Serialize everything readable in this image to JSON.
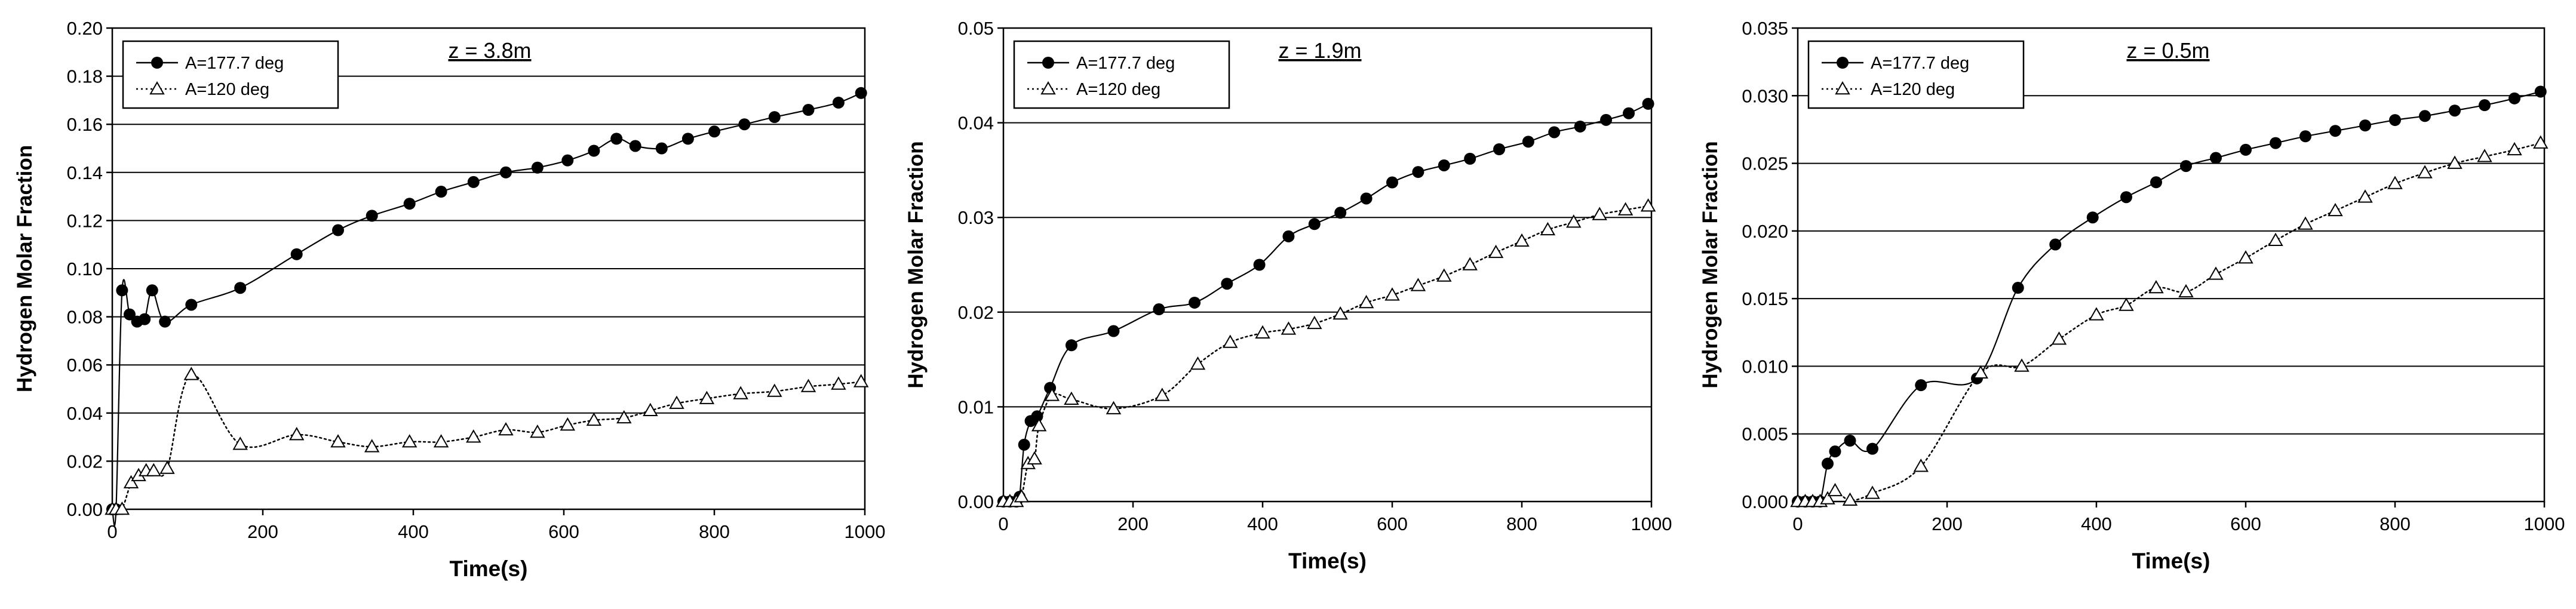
{
  "chart_data": [
    {
      "type": "line",
      "title": "z = 3.8m",
      "xlabel": "Time(s)",
      "ylabel": "Hydrogen Molar Fraction",
      "xlim": [
        0,
        1000
      ],
      "ylim": [
        0,
        0.2
      ],
      "xticks": [
        0,
        200,
        400,
        600,
        800,
        1000
      ],
      "xtick_labels": [
        "0",
        "200",
        "400",
        "600",
        "800",
        "1000"
      ],
      "yticks": [
        0,
        0.02,
        0.04,
        0.06,
        0.08,
        0.1,
        0.12,
        0.14,
        0.16,
        0.18,
        0.2
      ],
      "ytick_labels": [
        "0.00",
        "0.02",
        "0.04",
        "0.06",
        "0.08",
        "0.10",
        "0.12",
        "0.14",
        "0.16",
        "0.18",
        "0.20"
      ],
      "grid": "horizontal",
      "legend": "top-left",
      "series": [
        {
          "name": "A=177.7 deg",
          "marker": "circle",
          "line": "solid",
          "x": [
            0,
            5,
            13,
            23,
            33,
            43,
            53,
            70,
            105,
            170,
            245,
            300,
            345,
            395,
            437,
            480,
            523,
            565,
            605,
            640,
            670,
            695,
            730,
            765,
            800,
            840,
            880,
            925,
            965,
            995
          ],
          "y": [
            0,
            0,
            0.091,
            0.081,
            0.078,
            0.079,
            0.091,
            0.078,
            0.085,
            0.092,
            0.106,
            0.116,
            0.122,
            0.127,
            0.132,
            0.136,
            0.14,
            0.142,
            0.145,
            0.149,
            0.154,
            0.151,
            0.15,
            0.154,
            0.157,
            0.16,
            0.163,
            0.166,
            0.169,
            0.173
          ]
        },
        {
          "name": "A=120 deg",
          "marker": "triangle",
          "line": "dotted",
          "x": [
            0,
            5,
            13,
            25,
            35,
            45,
            55,
            73,
            105,
            170,
            245,
            300,
            345,
            395,
            437,
            480,
            523,
            565,
            605,
            640,
            680,
            715,
            750,
            790,
            835,
            880,
            925,
            965,
            995
          ],
          "y": [
            0,
            0,
            0,
            0.011,
            0.014,
            0.016,
            0.016,
            0.017,
            0.056,
            0.027,
            0.031,
            0.028,
            0.026,
            0.028,
            0.028,
            0.03,
            0.033,
            0.032,
            0.035,
            0.037,
            0.038,
            0.041,
            0.044,
            0.046,
            0.048,
            0.049,
            0.051,
            0.052,
            0.053
          ]
        }
      ]
    },
    {
      "type": "line",
      "title": "z = 1.9m",
      "xlabel": "Time(s)",
      "ylabel": "Hydrogen Molar Fraction",
      "xlim": [
        0,
        1000
      ],
      "ylim": [
        0,
        0.05
      ],
      "xticks": [
        0,
        200,
        400,
        600,
        800,
        1000
      ],
      "xtick_labels": [
        "0",
        "200",
        "400",
        "600",
        "800",
        "1000"
      ],
      "yticks": [
        0,
        0.01,
        0.02,
        0.03,
        0.04,
        0.05
      ],
      "ytick_labels": [
        "0.00",
        "0.01",
        "0.02",
        "0.03",
        "0.04",
        "0.05"
      ],
      "grid": "horizontal",
      "legend": "top-left",
      "series": [
        {
          "name": "A=177.7 deg",
          "marker": "circle",
          "line": "solid",
          "x": [
            0,
            10,
            20,
            25,
            32,
            42,
            52,
            72,
            105,
            170,
            240,
            295,
            345,
            395,
            440,
            480,
            520,
            560,
            600,
            640,
            680,
            720,
            765,
            810,
            850,
            890,
            930,
            965,
            995
          ],
          "y": [
            0,
            0,
            0,
            0.0005,
            0.006,
            0.0085,
            0.009,
            0.012,
            0.0165,
            0.018,
            0.0203,
            0.021,
            0.023,
            0.025,
            0.028,
            0.0293,
            0.0305,
            0.032,
            0.0337,
            0.0348,
            0.0355,
            0.0362,
            0.0372,
            0.038,
            0.039,
            0.0396,
            0.0403,
            0.041,
            0.042
          ]
        },
        {
          "name": "A=120 deg",
          "marker": "triangle",
          "line": "dotted",
          "x": [
            0,
            10,
            20,
            28,
            38,
            48,
            55,
            75,
            105,
            170,
            245,
            300,
            350,
            400,
            440,
            480,
            520,
            560,
            600,
            640,
            680,
            720,
            760,
            800,
            840,
            880,
            920,
            960,
            995
          ],
          "y": [
            0,
            0,
            0,
            0.0005,
            0.004,
            0.0045,
            0.008,
            0.0112,
            0.0108,
            0.0098,
            0.0112,
            0.0145,
            0.0168,
            0.0178,
            0.0182,
            0.0188,
            0.0198,
            0.021,
            0.0218,
            0.0228,
            0.0238,
            0.025,
            0.0263,
            0.0275,
            0.0287,
            0.0295,
            0.0303,
            0.0308,
            0.0312
          ]
        }
      ]
    },
    {
      "type": "line",
      "title": "z = 0.5m",
      "xlabel": "Time(s)",
      "ylabel": "Hydrogen Molar Fraction",
      "xlim": [
        0,
        1000
      ],
      "ylim": [
        0,
        0.035
      ],
      "xticks": [
        0,
        200,
        400,
        600,
        800,
        1000
      ],
      "xtick_labels": [
        "0",
        "200",
        "400",
        "600",
        "800",
        "1000"
      ],
      "yticks": [
        0,
        0.005,
        0.01,
        0.015,
        0.02,
        0.025,
        0.03,
        0.035
      ],
      "ytick_labels": [
        "0.000",
        "0.005",
        "0.010",
        "0.015",
        "0.020",
        "0.025",
        "0.030",
        "0.035"
      ],
      "grid": "horizontal",
      "legend": "top-left",
      "series": [
        {
          "name": "A=177.7 deg",
          "marker": "circle",
          "line": "solid",
          "x": [
            0,
            10,
            20,
            30,
            40,
            50,
            70,
            100,
            165,
            240,
            295,
            345,
            395,
            440,
            480,
            520,
            560,
            600,
            640,
            680,
            720,
            760,
            800,
            840,
            880,
            920,
            960,
            995
          ],
          "y": [
            0,
            0,
            0,
            0,
            0.0028,
            0.0037,
            0.0045,
            0.0039,
            0.0086,
            0.0091,
            0.0158,
            0.019,
            0.021,
            0.0225,
            0.0236,
            0.0248,
            0.0254,
            0.026,
            0.0265,
            0.027,
            0.0274,
            0.0278,
            0.0282,
            0.0285,
            0.0289,
            0.0293,
            0.0298,
            0.0303
          ]
        },
        {
          "name": "A=120 deg",
          "marker": "triangle",
          "line": "dotted",
          "x": [
            0,
            10,
            20,
            30,
            40,
            50,
            70,
            100,
            165,
            245,
            300,
            350,
            400,
            440,
            480,
            520,
            560,
            600,
            640,
            680,
            720,
            760,
            800,
            840,
            880,
            920,
            960,
            995
          ],
          "y": [
            0,
            0,
            0,
            0,
            0.0002,
            0.0008,
            0.0001,
            0.0006,
            0.0026,
            0.0095,
            0.01,
            0.012,
            0.0138,
            0.0145,
            0.0158,
            0.0155,
            0.0168,
            0.018,
            0.0193,
            0.0205,
            0.0215,
            0.0225,
            0.0235,
            0.0243,
            0.025,
            0.0255,
            0.026,
            0.0265
          ]
        }
      ]
    }
  ]
}
